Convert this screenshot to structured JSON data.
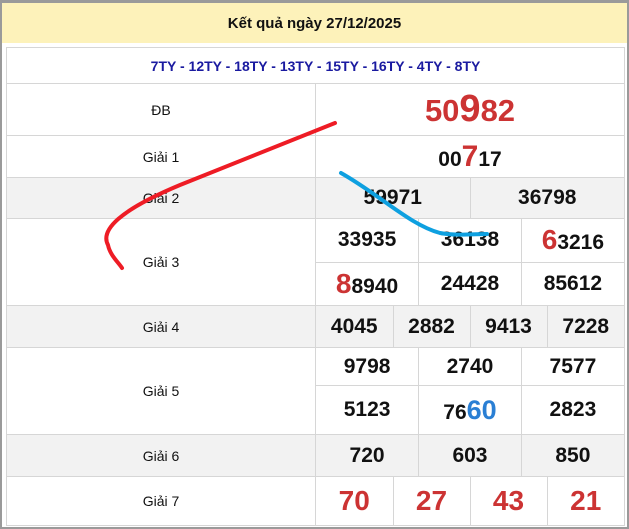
{
  "header": {
    "title": "Kết quả ngày 27/12/2025"
  },
  "provinces": "7TY - 12TY - 18TY - 13TY - 15TY - 16TY - 4TY - 8TY",
  "labels": {
    "db": "ĐB",
    "g1": "Giải 1",
    "g2": "Giải 2",
    "g3": "Giải 3",
    "g4": "Giải 4",
    "g5": "Giải 5",
    "g6": "Giải 6",
    "g7": "Giải 7"
  },
  "db": {
    "a": "50",
    "b": "9",
    "c": "82"
  },
  "g1": {
    "a": "00",
    "b": "7",
    "c": "17"
  },
  "g2": [
    "59971",
    "36798"
  ],
  "g3": {
    "r1": [
      "33935",
      "36138"
    ],
    "r1c_hl": "6",
    "r1c_rest": "3216",
    "r2a_hl": "8",
    "r2a_rest": "8940",
    "r2": [
      "24428",
      "85612"
    ]
  },
  "g4": [
    "4045",
    "2882",
    "9413",
    "7228"
  ],
  "g5": {
    "r1": [
      "9798",
      "2740",
      "7577"
    ],
    "r2a": "5123",
    "r2b_pre": "76",
    "r2b_hl": "60",
    "r2c": "2823"
  },
  "g6": [
    "720",
    "603",
    "850"
  ],
  "g7": [
    "70",
    "27",
    "43",
    "21"
  ],
  "colors": {
    "highlight_red": "#cc3333",
    "highlight_blue": "#2a7fd4",
    "line_red": "#ee1c25",
    "line_blue": "#0ea0e0",
    "header_bg": "#fdf2ba"
  }
}
